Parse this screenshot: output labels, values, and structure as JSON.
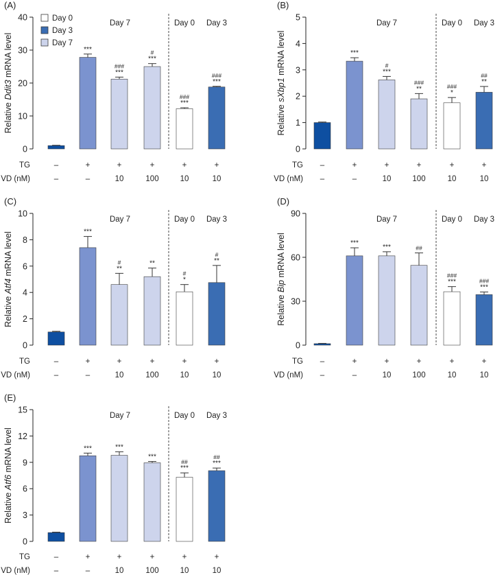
{
  "colors": {
    "day0": "#ffffff",
    "day3": "#3a6db3",
    "day7": "#cdd4ec",
    "tg_only": "#7b93cf",
    "control": "#0e4fa1"
  },
  "legend": [
    {
      "label": "Day 0",
      "group": "day0"
    },
    {
      "label": "Day 3",
      "group": "day3"
    },
    {
      "label": "Day 7",
      "group": "day7"
    }
  ],
  "conditions": {
    "tg_label": "TG",
    "vd_label": "VD (nM)",
    "tg": [
      "–",
      "+",
      "+",
      "+",
      "+",
      "+"
    ],
    "vd": [
      "–",
      "–",
      "10",
      "100",
      "10",
      "10"
    ]
  },
  "groups": [
    {
      "label": "Day 7",
      "bars": [
        1,
        3
      ]
    },
    {
      "label": "Day 0",
      "bars": [
        4,
        4
      ]
    },
    {
      "label": "Day 3",
      "bars": [
        5,
        5
      ]
    }
  ],
  "chart_data": [
    {
      "type": "bar",
      "panel": "(A)",
      "ylabel_pre": "Relative ",
      "ylabel_gene": "Ddit3",
      "ylabel_post": " mRNA level",
      "ylim": [
        0,
        40
      ],
      "yticks": [
        0,
        10,
        20,
        30,
        40
      ],
      "values": [
        1.0,
        27.8,
        21.2,
        25.0,
        12.2,
        18.8
      ],
      "errors": [
        0.1,
        1.0,
        0.6,
        0.9,
        0.3,
        0.2
      ],
      "sig_star": [
        "",
        "***",
        "***",
        "***",
        "***",
        "***"
      ],
      "sig_hash": [
        "",
        "",
        "###",
        "#",
        "###",
        "###"
      ],
      "legend": true
    },
    {
      "type": "bar",
      "panel": "(B)",
      "ylabel_pre": "Relative ",
      "ylabel_gene": "sXbp1",
      "ylabel_post": " mRNA level",
      "ylim": [
        0,
        5
      ],
      "yticks": [
        0,
        1,
        2,
        3,
        4,
        5
      ],
      "values": [
        1.0,
        3.33,
        2.62,
        1.9,
        1.75,
        2.15
      ],
      "errors": [
        0.02,
        0.13,
        0.13,
        0.2,
        0.2,
        0.22
      ],
      "sig_star": [
        "",
        "***",
        "***",
        "**",
        "*",
        "**"
      ],
      "sig_hash": [
        "",
        "",
        "#",
        "###",
        "###",
        "##"
      ],
      "legend": false
    },
    {
      "type": "bar",
      "panel": "(C)",
      "ylabel_pre": "Relative ",
      "ylabel_gene": "Atf4",
      "ylabel_post": " mRNA level",
      "ylim": [
        0,
        10
      ],
      "yticks": [
        0,
        2,
        4,
        6,
        8,
        10
      ],
      "values": [
        1.0,
        7.4,
        4.6,
        5.2,
        4.05,
        4.75
      ],
      "errors": [
        0.05,
        0.85,
        0.85,
        0.65,
        0.55,
        1.3
      ],
      "sig_star": [
        "",
        "***",
        "**",
        "**",
        "*",
        "**"
      ],
      "sig_hash": [
        "",
        "",
        "#",
        "",
        "#",
        "#"
      ],
      "legend": false
    },
    {
      "type": "bar",
      "panel": "(D)",
      "ylabel_pre": "Relative ",
      "ylabel_gene": "Bip",
      "ylabel_post": " mRNA level",
      "ylim": [
        0,
        90
      ],
      "yticks": [
        0,
        30,
        60,
        90
      ],
      "values": [
        1.0,
        61.0,
        61.0,
        54.5,
        36.5,
        34.5
      ],
      "errors": [
        0.2,
        5.5,
        2.8,
        8.5,
        3.5,
        1.8
      ],
      "sig_star": [
        "",
        "***",
        "***",
        "",
        "***",
        "***"
      ],
      "sig_hash": [
        "",
        "",
        "",
        "##",
        "###",
        "###"
      ],
      "legend": false
    },
    {
      "type": "bar",
      "panel": "(E)",
      "ylabel_pre": "Relative ",
      "ylabel_gene": "Atf6",
      "ylabel_post": " mRNA level",
      "ylim": [
        0,
        15
      ],
      "yticks": [
        0,
        3,
        6,
        9,
        12,
        15
      ],
      "values": [
        1.0,
        9.75,
        9.8,
        8.95,
        7.3,
        8.05
      ],
      "errors": [
        0.05,
        0.3,
        0.4,
        0.15,
        0.5,
        0.3
      ],
      "sig_star": [
        "",
        "***",
        "***",
        "***",
        "***",
        "***"
      ],
      "sig_hash": [
        "",
        "",
        "",
        "",
        "##",
        "##"
      ],
      "legend": false
    }
  ]
}
